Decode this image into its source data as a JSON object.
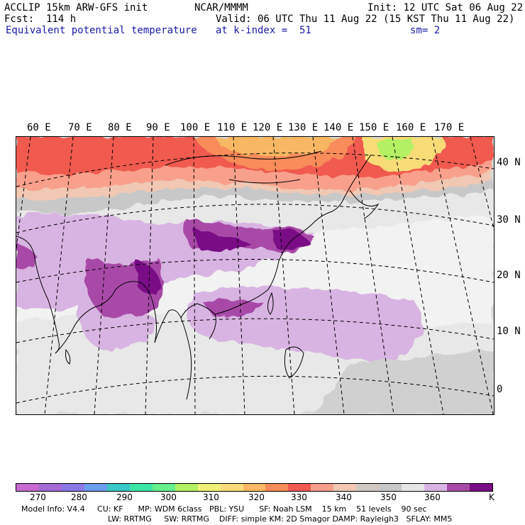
{
  "header": {
    "model": "ACCLIP 15km ARW-GFS init",
    "org": "NCAR/MMMM",
    "init": "Init: 12 UTC Sat 06 Aug 22",
    "fcst": "Fcst:  114 h",
    "valid": "Valid: 06 UTC Thu 11 Aug 22 (15 KST Thu 11 Aug 22)",
    "field": "Equivalent potential temperature",
    "level": "at k-index =  51",
    "smooth": "sm= 2"
  },
  "map": {
    "lon_labels": [
      "60 E",
      "70 E",
      "80 E",
      "90 E",
      "100 E",
      "110 E",
      "120 E",
      "130 E",
      "140 E",
      "150 E",
      "160 E",
      "170 E"
    ],
    "lat_labels": [
      "40 N",
      "30 N",
      "20 N",
      "10 N",
      "0"
    ]
  },
  "colorbar": {
    "colors": [
      "#c86ad2",
      "#a56ad6",
      "#8c78e6",
      "#6c9cec",
      "#38c8c8",
      "#3ce6a8",
      "#64f08c",
      "#b4f064",
      "#f0f078",
      "#f8dc78",
      "#f8b864",
      "#f88c5a",
      "#f05a50",
      "#f8a08c",
      "#f0c8b4",
      "#d2c8c2",
      "#c8c8c8",
      "#e6e6e6",
      "#d8b4e2",
      "#a84aa8",
      "#7a0c86"
    ],
    "ticks": [
      "270",
      "280",
      "290",
      "300",
      "310",
      "320",
      "330",
      "340",
      "350",
      "360",
      "K"
    ]
  },
  "footer": {
    "line1": "Model Info: V4.4     CU: KF      MP: WDM 6class   PBL: YSU      SF: Noah LSM    15 km    51 levels    90 sec",
    "line2": "LW: RRTMG     SW: RRTMG    DIFF: simple KM: 2D Smagor DAMP: Rayleigh3   SFLAY: MM5"
  }
}
